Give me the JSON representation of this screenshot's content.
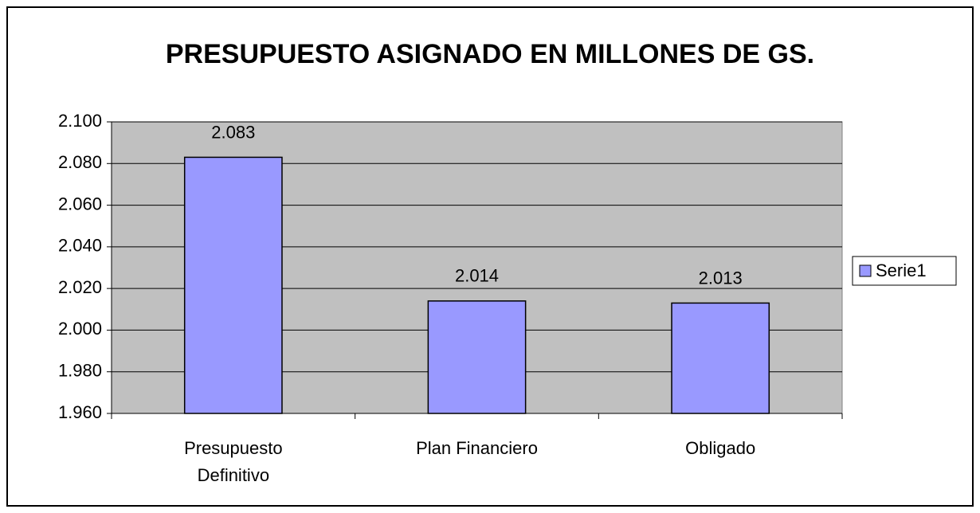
{
  "chart_data": {
    "type": "bar",
    "title": "PRESUPUESTO ASIGNADO EN MILLONES DE GS.",
    "categories": [
      "Presupuesto Definitivo",
      "Plan Financiero",
      "Obligado"
    ],
    "series": [
      {
        "name": "Serie1",
        "color": "#9999ff",
        "values": [
          2083,
          2014,
          2013
        ],
        "value_labels": [
          "2.083",
          "2.014",
          "2.013"
        ]
      }
    ],
    "ylim": [
      1960,
      2100
    ],
    "yticks": [
      {
        "value": 1960,
        "label": "1.960"
      },
      {
        "value": 1980,
        "label": "1.980"
      },
      {
        "value": 2000,
        "label": "2.000"
      },
      {
        "value": 2020,
        "label": "2.020"
      },
      {
        "value": 2040,
        "label": "2.040"
      },
      {
        "value": 2060,
        "label": "2.060"
      },
      {
        "value": 2080,
        "label": "2.080"
      },
      {
        "value": 2100,
        "label": "2.100"
      }
    ],
    "grid": true,
    "legend": "right"
  }
}
